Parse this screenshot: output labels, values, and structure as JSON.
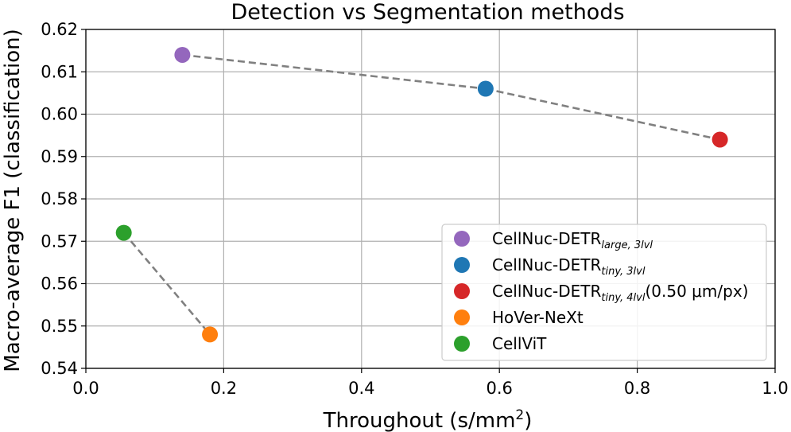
{
  "chart_data": {
    "type": "scatter",
    "title": "Detection vs Segmentation methods",
    "xlabel": "Throughout (s/mm",
    "xlabel_sup": "2",
    "xlabel_close": ")",
    "ylabel": "Macro-average F1 (classification)",
    "xlim": [
      0.0,
      1.0
    ],
    "ylim": [
      0.54,
      0.62
    ],
    "grid": true,
    "legend_position": "lower-right",
    "x_ticks": [
      {
        "value": 0.0,
        "label": "0.0"
      },
      {
        "value": 0.2,
        "label": "0.2"
      },
      {
        "value": 0.4,
        "label": "0.4"
      },
      {
        "value": 0.6,
        "label": "0.6"
      },
      {
        "value": 0.8,
        "label": "0.8"
      },
      {
        "value": 1.0,
        "label": "1.0"
      }
    ],
    "y_ticks": [
      {
        "value": 0.54,
        "label": "0.54"
      },
      {
        "value": 0.55,
        "label": "0.55"
      },
      {
        "value": 0.56,
        "label": "0.56"
      },
      {
        "value": 0.57,
        "label": "0.57"
      },
      {
        "value": 0.58,
        "label": "0.58"
      },
      {
        "value": 0.59,
        "label": "0.59"
      },
      {
        "value": 0.6,
        "label": "0.60"
      },
      {
        "value": 0.61,
        "label": "0.61"
      },
      {
        "value": 0.62,
        "label": "0.62"
      }
    ],
    "series": [
      {
        "name": "CellNuc-DETR",
        "sub": "large, 3lvl",
        "suffix": "",
        "color": "#9467bd",
        "x": 0.14,
        "y": 0.614
      },
      {
        "name": "CellNuc-DETR",
        "sub": "tiny, 3lvl",
        "suffix": "",
        "color": "#1f77b4",
        "x": 0.58,
        "y": 0.606
      },
      {
        "name": "CellNuc-DETR",
        "sub": "tiny, 4lvl",
        "suffix": "(0.50 μm/px)",
        "color": "#d62728",
        "x": 0.92,
        "y": 0.594
      },
      {
        "name": "HoVer-NeXt",
        "sub": "",
        "suffix": "",
        "color": "#ff7f0e",
        "x": 0.18,
        "y": 0.548
      },
      {
        "name": "CellViT",
        "sub": "",
        "suffix": "",
        "color": "#2ca02c",
        "x": 0.055,
        "y": 0.572
      }
    ],
    "connections": [
      {
        "from": 0,
        "to": 1,
        "style": "dashed",
        "color": "#808080"
      },
      {
        "from": 1,
        "to": 2,
        "style": "dashed",
        "color": "#808080"
      },
      {
        "from": 4,
        "to": 3,
        "style": "dashed",
        "color": "#808080"
      }
    ]
  }
}
